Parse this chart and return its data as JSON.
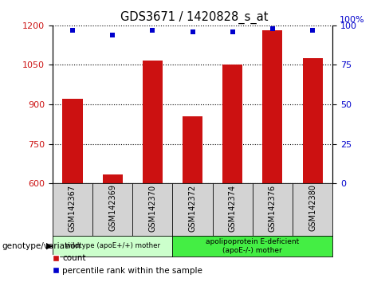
{
  "title": "GDS3671 / 1420828_s_at",
  "samples": [
    "GSM142367",
    "GSM142369",
    "GSM142370",
    "GSM142372",
    "GSM142374",
    "GSM142376",
    "GSM142380"
  ],
  "counts": [
    920,
    635,
    1065,
    855,
    1050,
    1180,
    1075
  ],
  "percentile_ranks": [
    97,
    94,
    97,
    96,
    96,
    98,
    97
  ],
  "ylim_left": [
    600,
    1200
  ],
  "ylim_right": [
    0,
    100
  ],
  "yticks_left": [
    600,
    750,
    900,
    1050,
    1200
  ],
  "yticks_right": [
    0,
    25,
    50,
    75,
    100
  ],
  "bar_color": "#cc1111",
  "dot_color": "#0000cc",
  "grid_color": "#000000",
  "bg_color": "#ffffff",
  "tick_bg_color": "#d3d3d3",
  "group1_label": "wildtype (apoE+/+) mother",
  "group2_label": "apolipoprotein E-deficient\n(apoE-/-) mother",
  "group1_color": "#ccffcc",
  "group2_color": "#44ee44",
  "legend_count_label": "count",
  "legend_pct_label": "percentile rank within the sample",
  "genotype_label": "genotype/variation"
}
